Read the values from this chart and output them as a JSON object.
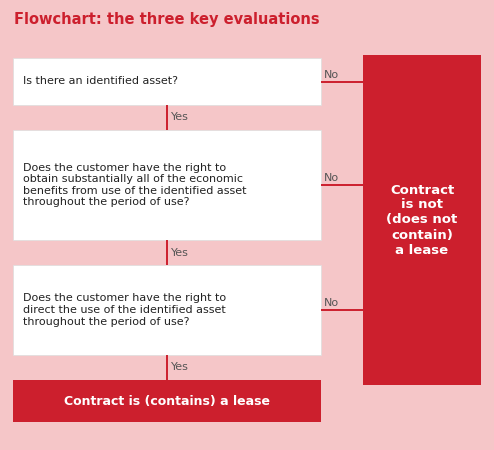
{
  "title": "Flowchart: the three key evaluations",
  "title_color": "#cc1f2d",
  "bg_color": "#f5c6c8",
  "box_color": "#ffffff",
  "red_color": "#cc1f2d",
  "box_text_color": "#222222",
  "yes_no_color": "#555555",
  "boxes": [
    "Is there an identified asset?",
    "Does the customer have the right to\nobtain substantially all of the economic\nbenefits from use of the identified asset\nthroughout the period of use?",
    "Does the customer have the right to\ndirect the use of the identified asset\nthroughout the period of use?"
  ],
  "bottom_text": "Contract is (contains) a lease",
  "right_text": "Contract\nis not\n(does not\ncontain)\na lease",
  "fig_width": 4.94,
  "fig_height": 4.5,
  "dpi": 100
}
